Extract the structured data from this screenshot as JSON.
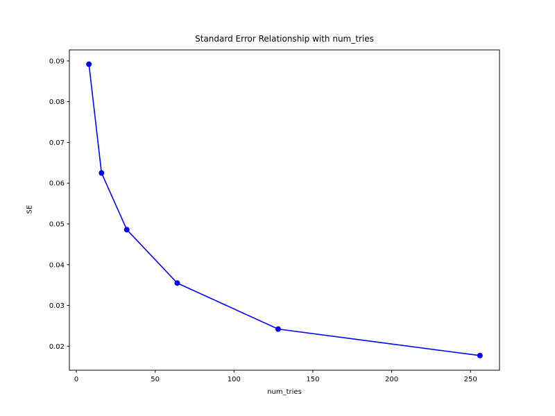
{
  "figure": {
    "background_color": "#ffffff",
    "text_color": "#000000",
    "spine_color": "#000000"
  },
  "chart_data": {
    "type": "line",
    "title": "Standard Error Relationship with num_tries",
    "xlabel": "num_tries",
    "ylabel": "SE",
    "series": [
      {
        "name": "SE",
        "x": [
          8,
          16,
          32,
          64,
          128,
          256
        ],
        "y": [
          0.0892,
          0.0625,
          0.0486,
          0.0355,
          0.0242,
          0.0177
        ],
        "color": "#0000ff",
        "marker": "circle",
        "marker_radius": 4,
        "line_width": 1.6
      }
    ],
    "xlim": [
      -4.4,
      268.4
    ],
    "ylim": [
      0.0141,
      0.0927
    ],
    "xticks": {
      "values": [
        0,
        50,
        100,
        150,
        200,
        250
      ],
      "labels": [
        "0",
        "50",
        "100",
        "150",
        "200",
        "250"
      ]
    },
    "yticks": {
      "values": [
        0.02,
        0.03,
        0.04,
        0.05,
        0.06,
        0.07,
        0.08,
        0.09
      ],
      "labels": [
        "0.02",
        "0.03",
        "0.04",
        "0.05",
        "0.06",
        "0.07",
        "0.08",
        "0.09"
      ]
    },
    "grid": false,
    "legend": null
  }
}
